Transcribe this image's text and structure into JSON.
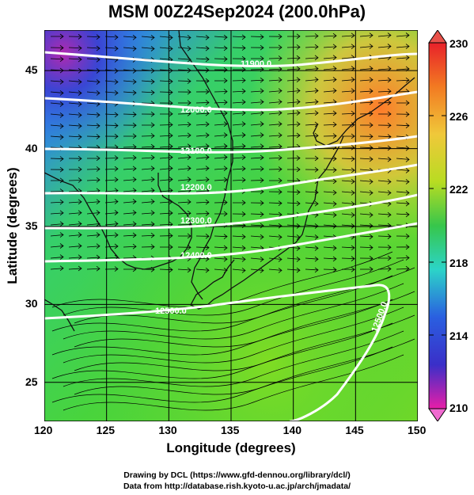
{
  "title": "MSM 00Z24Sep2024 (200.0hPa)",
  "x_axis": {
    "label": "Longitude (degrees)",
    "ticks": [
      "120",
      "125",
      "130",
      "135",
      "140",
      "145",
      "150"
    ],
    "range": [
      120,
      150
    ]
  },
  "y_axis": {
    "label": "Latitude  (degrees)",
    "ticks": [
      "25",
      "30",
      "35",
      "40",
      "45"
    ],
    "range": [
      22.5,
      47.6
    ]
  },
  "colorbar": {
    "ticks": [
      "230",
      "226",
      "222",
      "218",
      "214",
      "210"
    ],
    "range": [
      210,
      230
    ]
  },
  "contour_labels": [
    "11900.0",
    "12000.0",
    "12100.0",
    "12200.0",
    "12300.0",
    "12400.0",
    "12500.0",
    "12500.0"
  ],
  "credits": {
    "line1": "Drawing by DCL (https://www.gfd-dennou.org/library/dcl/)",
    "line2": "Data from http://database.rish.kyoto-u.ac.jp/arch/jmadata/"
  }
}
